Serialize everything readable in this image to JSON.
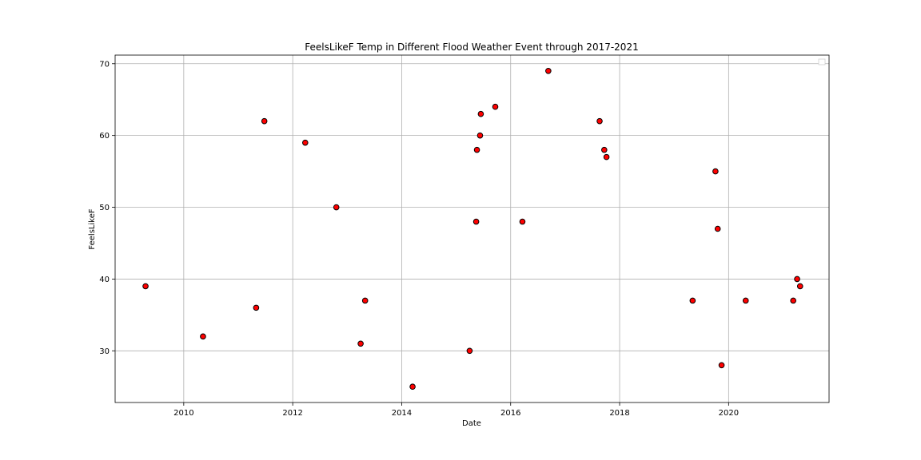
{
  "chart_data": {
    "type": "scatter",
    "title": "FeelsLikeF Temp in Different Flood Weather Event through 2017-2021",
    "xlabel": "Date",
    "ylabel": "FeelsLikeF",
    "x_ticks": [
      "2010",
      "2012",
      "2014",
      "2016",
      "2018",
      "2020"
    ],
    "y_ticks": [
      30,
      40,
      50,
      60,
      70
    ],
    "xlim": [
      "2008-09-28",
      "2021-11-05"
    ],
    "ylim": [
      22.8,
      71.2
    ],
    "grid": true,
    "legend": "top-right (empty)",
    "marker_color": "#ff0000",
    "marker_edge_color": "#000000",
    "x": [
      "2009-04-20",
      "2010-05-10",
      "2011-05-01",
      "2011-06-25",
      "2012-03-25",
      "2012-10-20",
      "2013-04-01",
      "2013-05-01",
      "2014-03-15",
      "2015-04-01",
      "2015-05-15",
      "2015-05-20",
      "2015-06-10",
      "2015-06-15",
      "2015-09-20",
      "2016-03-20",
      "2016-09-10",
      "2017-08-20",
      "2017-09-20",
      "2017-10-05",
      "2019-05-05",
      "2019-10-05",
      "2019-10-20",
      "2019-11-15",
      "2020-04-25",
      "2021-03-10",
      "2021-04-05",
      "2021-04-25"
    ],
    "y": [
      39,
      32,
      36,
      62,
      59,
      50,
      31,
      37,
      25,
      30,
      48,
      58,
      60,
      63,
      64,
      48,
      69,
      62,
      58,
      57,
      37,
      55,
      47,
      28,
      37,
      37,
      40,
      39
    ]
  }
}
